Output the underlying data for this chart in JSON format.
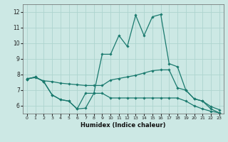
{
  "xlabel": "Humidex (Indice chaleur)",
  "ylabel": "",
  "background_color": "#cce8e4",
  "grid_color": "#aed4cf",
  "line_color": "#1a7a6e",
  "xlim": [
    -0.5,
    23.5
  ],
  "ylim": [
    5.5,
    12.5
  ],
  "xticks": [
    0,
    1,
    2,
    3,
    4,
    5,
    6,
    7,
    8,
    9,
    10,
    11,
    12,
    13,
    14,
    15,
    16,
    17,
    18,
    19,
    20,
    21,
    22,
    23
  ],
  "yticks": [
    6,
    7,
    8,
    9,
    10,
    11,
    12
  ],
  "series": [
    {
      "x": [
        0,
        1,
        2,
        3,
        4,
        5,
        6,
        7,
        8,
        9,
        10,
        11,
        12,
        13,
        14,
        15,
        16,
        17,
        18,
        19,
        20,
        21,
        22,
        23
      ],
      "y": [
        7.7,
        7.85,
        7.55,
        6.7,
        6.4,
        6.3,
        5.8,
        5.85,
        6.8,
        6.8,
        6.5,
        6.5,
        6.5,
        6.5,
        6.5,
        6.5,
        6.5,
        6.5,
        6.5,
        6.3,
        6.0,
        5.8,
        5.65,
        5.55
      ]
    },
    {
      "x": [
        0,
        1,
        2,
        3,
        4,
        5,
        6,
        7,
        8,
        9,
        10,
        11,
        12,
        13,
        14,
        15,
        16,
        17,
        18,
        19,
        20,
        21,
        22,
        23
      ],
      "y": [
        7.75,
        7.8,
        7.6,
        7.55,
        7.45,
        7.4,
        7.35,
        7.3,
        7.3,
        7.3,
        7.65,
        7.75,
        7.85,
        7.95,
        8.1,
        8.25,
        8.3,
        8.3,
        7.15,
        7.0,
        6.45,
        6.3,
        5.95,
        5.75
      ]
    },
    {
      "x": [
        0,
        1,
        2,
        3,
        4,
        5,
        6,
        7,
        8,
        9,
        10,
        11,
        12,
        13,
        14,
        15,
        16,
        17,
        18,
        19,
        20,
        21,
        22,
        23
      ],
      "y": [
        7.7,
        7.85,
        7.55,
        6.7,
        6.4,
        6.3,
        5.8,
        6.8,
        6.8,
        9.3,
        9.3,
        10.5,
        9.8,
        11.8,
        10.5,
        11.7,
        11.85,
        8.7,
        8.5,
        7.0,
        6.45,
        6.3,
        5.8,
        5.55
      ]
    }
  ]
}
